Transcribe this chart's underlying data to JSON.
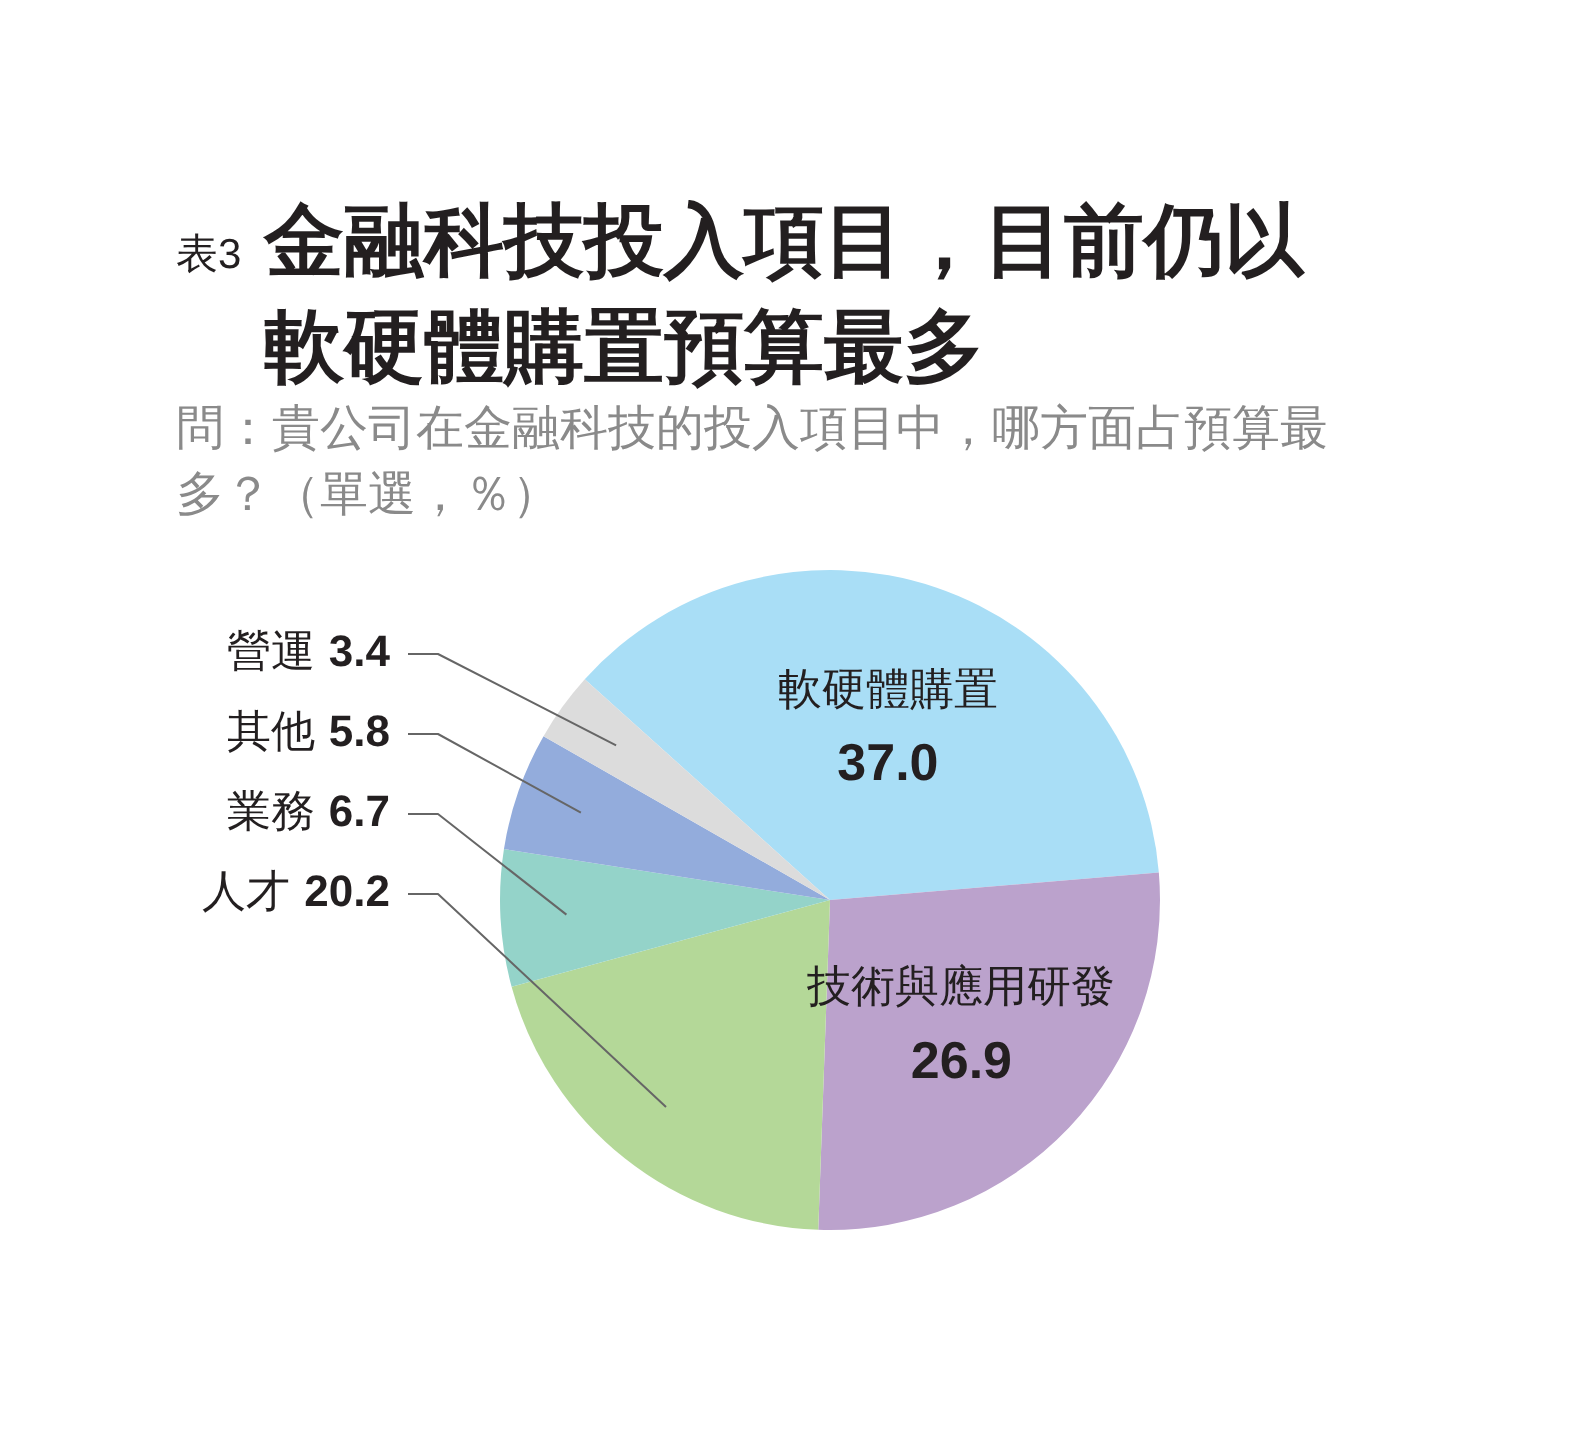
{
  "chart_data": {
    "type": "pie",
    "title": "表3 金融科技投入項目，目前仍以軟硬體購置預算最多",
    "subtitle": "問：貴公司在金融科技的投入項目中，哪方面占預算最多？（單選，％）",
    "categories": [
      "軟硬體購置",
      "技術與應用研發",
      "人才",
      "業務",
      "其他",
      "營運"
    ],
    "values": [
      37.0,
      26.9,
      20.2,
      6.7,
      5.8,
      3.4
    ],
    "colors": [
      "#a9def6",
      "#bba2cc",
      "#b4d898",
      "#94d3c9",
      "#93acdc",
      "#dcdcdc"
    ],
    "value_labels": [
      "37.0",
      "26.9",
      "20.2",
      "6.7",
      "5.8",
      "3.4"
    ]
  }
}
